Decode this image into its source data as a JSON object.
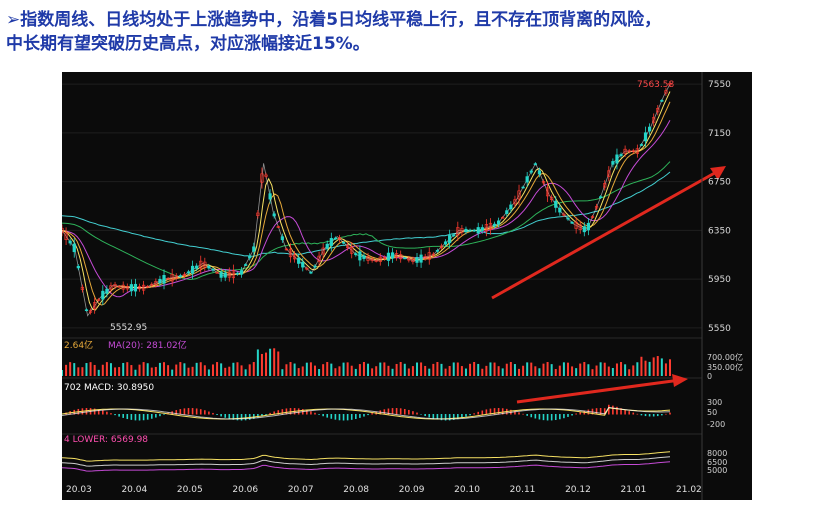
{
  "headline": {
    "line1": "➢指数周线、日线均处于上涨趋势中，沿着5日均线平稳上行，且不存在顶背离的风险，",
    "line2": "中长期有望突破历史高点，对应涨幅接近15%。"
  },
  "chart_data": {
    "type": "line",
    "panels": [
      {
        "name": "price",
        "ylim": [
          5500,
          7600
        ],
        "y_ticks": [
          "7550",
          "7150",
          "6750",
          "6350",
          "5950",
          "5550"
        ],
        "annotations": {
          "high": "7563.58",
          "low": "5552.95"
        }
      },
      {
        "name": "volume",
        "label_main": "2.64亿",
        "label_ma": "MA(20): 281.02亿",
        "y_ticks": [
          "700.00亿",
          "350.00亿",
          "0"
        ]
      },
      {
        "name": "macd",
        "label": "702  MACD: 30.8950",
        "y_ticks": [
          "300",
          "50",
          "-200"
        ]
      },
      {
        "name": "boll",
        "label": "4  LOWER: 6569.98",
        "y_ticks": [
          "8000",
          "6500",
          "5000"
        ]
      }
    ],
    "x_ticks": [
      "20.03",
      "20.04",
      "20.05",
      "20.06",
      "20.07",
      "20.08",
      "20.09",
      "20.10",
      "20.11",
      "20.12",
      "21.01",
      "21.02"
    ],
    "price_path": [
      [
        0,
        6350
      ],
      [
        0.02,
        6200
      ],
      [
        0.04,
        5650
      ],
      [
        0.06,
        5800
      ],
      [
        0.08,
        5900
      ],
      [
        0.1,
        5880
      ],
      [
        0.13,
        5880
      ],
      [
        0.16,
        5950
      ],
      [
        0.19,
        5980
      ],
      [
        0.22,
        6080
      ],
      [
        0.25,
        5980
      ],
      [
        0.28,
        6000
      ],
      [
        0.3,
        6200
      ],
      [
        0.315,
        6900
      ],
      [
        0.33,
        6500
      ],
      [
        0.35,
        6200
      ],
      [
        0.37,
        6100
      ],
      [
        0.39,
        6000
      ],
      [
        0.41,
        6200
      ],
      [
        0.43,
        6300
      ],
      [
        0.46,
        6150
      ],
      [
        0.49,
        6100
      ],
      [
        0.52,
        6150
      ],
      [
        0.55,
        6100
      ],
      [
        0.58,
        6150
      ],
      [
        0.6,
        6250
      ],
      [
        0.62,
        6350
      ],
      [
        0.65,
        6350
      ],
      [
        0.68,
        6400
      ],
      [
        0.71,
        6600
      ],
      [
        0.73,
        6800
      ],
      [
        0.74,
        6900
      ],
      [
        0.76,
        6650
      ],
      [
        0.78,
        6500
      ],
      [
        0.8,
        6400
      ],
      [
        0.82,
        6350
      ],
      [
        0.84,
        6600
      ],
      [
        0.86,
        6900
      ],
      [
        0.88,
        7000
      ],
      [
        0.9,
        7000
      ],
      [
        0.92,
        7200
      ],
      [
        0.94,
        7450
      ],
      [
        0.95,
        7550
      ]
    ]
  },
  "colors": {
    "up": "#ff3b30",
    "down": "#25d5c8",
    "ma5": "#f7e264",
    "ma10": "#e6a93a",
    "ma20": "#c54bd6",
    "ma60": "#2eb35a",
    "ma120": "#43cfd1",
    "arrow": "#e0281e",
    "title": "#1f3aa8"
  }
}
